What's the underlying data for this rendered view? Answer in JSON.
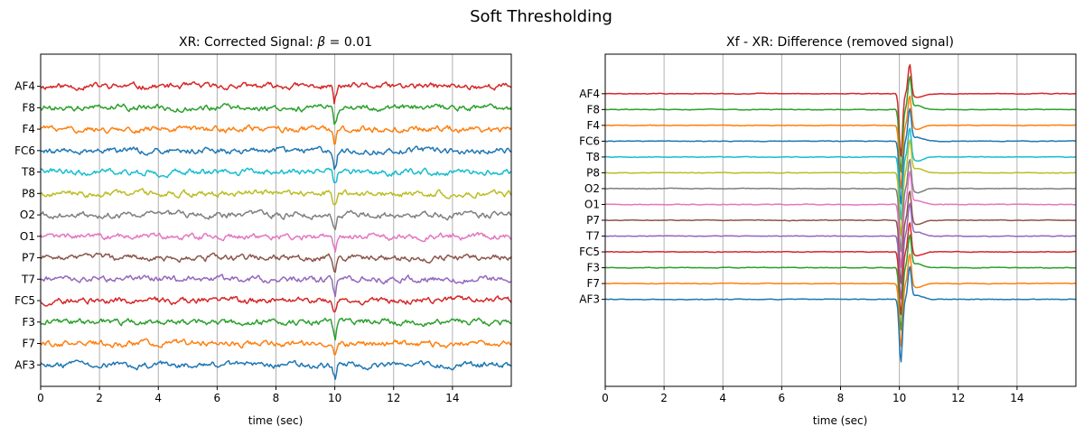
{
  "figure": {
    "title": "Soft Thresholding"
  },
  "colors": {
    "C0": "#1f77b4",
    "C1": "#ff7f0e",
    "C2": "#2ca02c",
    "C3": "#d62728",
    "C4": "#9467bd",
    "C5": "#8c564b",
    "C6": "#e377c2",
    "C7": "#7f7f7f",
    "C8": "#bcbd22",
    "C9": "#17becf",
    "grid": "#b0b0b0"
  },
  "chart_data": [
    {
      "type": "line",
      "title": "XR: Corrected Signal: β = 0.01",
      "title_prefix": "XR: Corrected Signal: ",
      "title_symbol": "β",
      "title_suffix": " = 0.01",
      "xlabel": "time (sec)",
      "ylabel": "",
      "xlim": [
        0,
        16
      ],
      "ylim": [
        -1,
        14.5
      ],
      "xticks": [
        0,
        2,
        4,
        6,
        8,
        10,
        12,
        14
      ],
      "grid": "vertical",
      "channels": [
        "AF4",
        "F8",
        "F4",
        "FC6",
        "T8",
        "P8",
        "O2",
        "O1",
        "P7",
        "T7",
        "FC5",
        "F3",
        "F7",
        "AF3"
      ],
      "series": [
        {
          "name": "AF4",
          "color": "C3",
          "offset": 13
        },
        {
          "name": "F8",
          "color": "C2",
          "offset": 12
        },
        {
          "name": "F4",
          "color": "C1",
          "offset": 11
        },
        {
          "name": "FC6",
          "color": "C0",
          "offset": 10
        },
        {
          "name": "T8",
          "color": "C9",
          "offset": 9
        },
        {
          "name": "P8",
          "color": "C8",
          "offset": 8
        },
        {
          "name": "O2",
          "color": "C7",
          "offset": 7
        },
        {
          "name": "O1",
          "color": "C6",
          "offset": 6
        },
        {
          "name": "P7",
          "color": "C5",
          "offset": 5
        },
        {
          "name": "T7",
          "color": "C4",
          "offset": 4
        },
        {
          "name": "FC5",
          "color": "C3",
          "offset": 3
        },
        {
          "name": "F3",
          "color": "C2",
          "offset": 2
        },
        {
          "name": "F7",
          "color": "C1",
          "offset": 1
        },
        {
          "name": "AF3",
          "color": "C0",
          "offset": 0
        }
      ],
      "events": [
        {
          "x": 10.0,
          "amplitude": -0.7
        }
      ]
    },
    {
      "type": "line",
      "title": "Xf - XR: Difference (removed signal)",
      "xlabel": "time (sec)",
      "ylabel": "",
      "xlim": [
        0,
        16
      ],
      "ylim": [
        -5.5,
        15.5
      ],
      "xticks": [
        0,
        2,
        4,
        6,
        8,
        10,
        12,
        14
      ],
      "grid": "vertical",
      "channels": [
        "AF4",
        "F8",
        "F4",
        "FC6",
        "T8",
        "P8",
        "O2",
        "O1",
        "P7",
        "T7",
        "FC5",
        "F3",
        "F7",
        "AF3"
      ],
      "series": [
        {
          "name": "AF4",
          "color": "C3",
          "offset": 13
        },
        {
          "name": "F8",
          "color": "C2",
          "offset": 12
        },
        {
          "name": "F4",
          "color": "C1",
          "offset": 11
        },
        {
          "name": "FC6",
          "color": "C0",
          "offset": 10
        },
        {
          "name": "T8",
          "color": "C9",
          "offset": 9
        },
        {
          "name": "P8",
          "color": "C8",
          "offset": 8
        },
        {
          "name": "O2",
          "color": "C7",
          "offset": 7
        },
        {
          "name": "O1",
          "color": "C6",
          "offset": 6
        },
        {
          "name": "P7",
          "color": "C5",
          "offset": 5
        },
        {
          "name": "T7",
          "color": "C4",
          "offset": 4
        },
        {
          "name": "FC5",
          "color": "C3",
          "offset": 3
        },
        {
          "name": "F3",
          "color": "C2",
          "offset": 2
        },
        {
          "name": "F7",
          "color": "C1",
          "offset": 1
        },
        {
          "name": "AF3",
          "color": "C0",
          "offset": 0
        }
      ],
      "events": [
        {
          "x": 10.05,
          "amplitude": -4.0
        },
        {
          "x": 10.35,
          "amplitude": 2.0
        }
      ]
    }
  ]
}
